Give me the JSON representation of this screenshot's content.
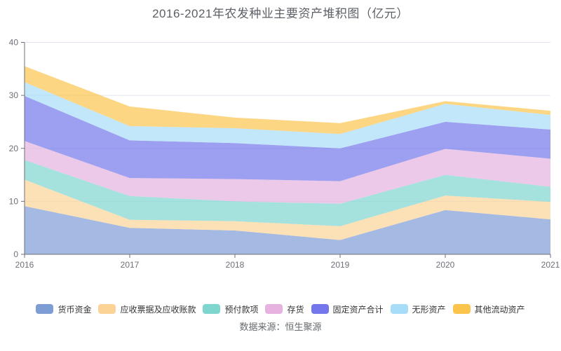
{
  "title": "2016-2021年农发种业主要资产堆积图（亿元）",
  "source_note": "数据来源：恒生聚源",
  "axis_color": "#6E7079",
  "grid_color": "#E0E6F1",
  "chart_data": {
    "type": "area",
    "stacked": true,
    "title": "2016-2021年农发种业主要资产堆积图（亿元）",
    "xlabel": "",
    "ylabel": "",
    "x_labels": [
      "2016",
      "2017",
      "2018",
      "2019",
      "2020",
      "2021"
    ],
    "y_ticks": [
      0,
      10,
      20,
      30,
      40
    ],
    "ylim": [
      0,
      40
    ],
    "grid": true,
    "legend_position": "bottom",
    "area_opacity": 0.7,
    "series": [
      {
        "name": "货币资金",
        "color": "#7E9DD5",
        "values": [
          9.1,
          5.0,
          4.5,
          2.7,
          8.35,
          6.6
        ]
      },
      {
        "name": "应收票据及应收账款",
        "color": "#FBD397",
        "values": [
          5.0,
          1.5,
          1.75,
          2.6,
          2.75,
          3.3
        ]
      },
      {
        "name": "预付款项",
        "color": "#7FD6CE",
        "values": [
          3.7,
          4.5,
          3.75,
          4.25,
          3.9,
          2.85
        ]
      },
      {
        "name": "存货",
        "color": "#E6B2DF",
        "values": [
          3.6,
          3.4,
          4.2,
          4.25,
          4.9,
          5.3
        ]
      },
      {
        "name": "固定资产合计",
        "color": "#7477EA",
        "values": [
          8.5,
          7.1,
          6.8,
          6.2,
          5.1,
          5.5
        ]
      },
      {
        "name": "无形资产",
        "color": "#A8DDF8",
        "values": [
          2.6,
          2.7,
          2.8,
          2.7,
          3.4,
          2.75
        ]
      },
      {
        "name": "其他流动资产",
        "color": "#FBC44D",
        "values": [
          3.0,
          3.7,
          2.0,
          2.05,
          0.5,
          0.8
        ]
      }
    ]
  }
}
